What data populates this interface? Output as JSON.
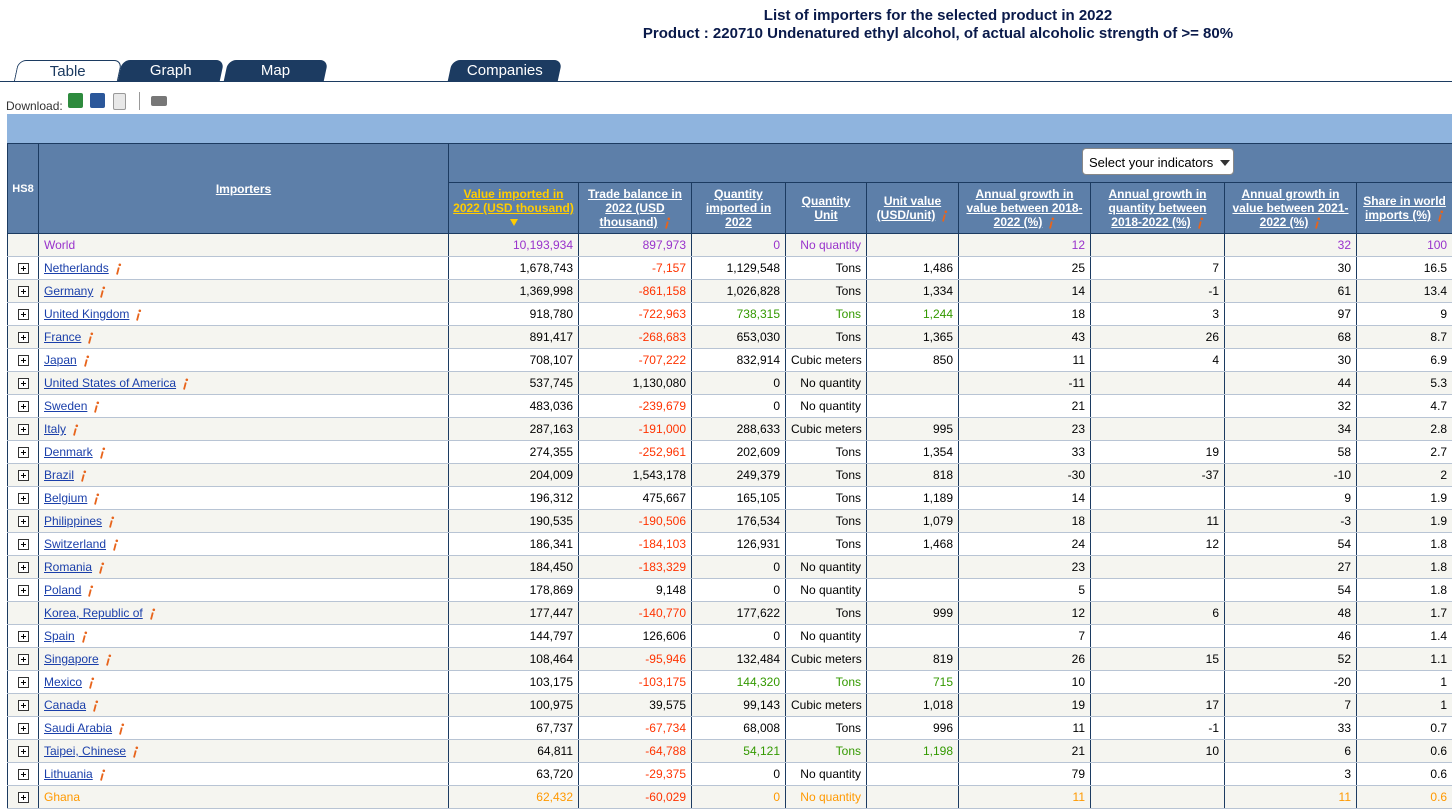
{
  "header": {
    "title": "List of importers for the selected product in 2022",
    "subtitle": "Product : 220710 Undenatured ethyl alcohol, of actual alcoholic strength of >= 80%"
  },
  "tabs": [
    "Table",
    "Graph",
    "Map",
    "Companies"
  ],
  "download_label": "Download:",
  "indicator_select": "Select your indicators",
  "table": {
    "negative_color": "#ff3300",
    "columns": [
      {
        "label": "HS8"
      },
      {
        "label": "Importers"
      },
      {
        "label": "Value imported in 2022 (USD thousand)",
        "sorted": true
      },
      {
        "label": "Trade balance in 2022 (USD thousand)",
        "info": true
      },
      {
        "label": "Quantity imported in 2022"
      },
      {
        "label": "Quantity Unit"
      },
      {
        "label": "Unit value (USD/unit)",
        "info": true
      },
      {
        "label": "Annual growth in value between 2018-2022 (%)",
        "info": true
      },
      {
        "label": "Annual growth in quantity between 2018-2022 (%)",
        "info": true
      },
      {
        "label": "Annual growth in value between 2021-2022 (%)",
        "info": true
      },
      {
        "label": "Share in world imports (%)",
        "info": true
      }
    ],
    "rows": [
      {
        "name": "World",
        "expand": false,
        "color": "#9933cc",
        "values": [
          "10,193,934",
          "897,973",
          "0",
          "No quantity",
          null,
          "12",
          null,
          "32",
          "100"
        ]
      },
      {
        "name": "Netherlands",
        "expand": true,
        "values": [
          "1,678,743",
          "-7,157",
          "1,129,548",
          "Tons",
          "1,486",
          "25",
          "7",
          "30",
          "16.5"
        ]
      },
      {
        "name": "Germany",
        "expand": true,
        "values": [
          "1,369,998",
          "-861,158",
          "1,026,828",
          "Tons",
          "1,334",
          "14",
          "-1",
          "61",
          "13.4"
        ]
      },
      {
        "name": "United Kingdom",
        "expand": true,
        "quantity_color": "#339900",
        "values": [
          "918,780",
          "-722,963",
          "738,315",
          "Tons",
          "1,244",
          "18",
          "3",
          "97",
          "9"
        ]
      },
      {
        "name": "France",
        "expand": true,
        "values": [
          "891,417",
          "-268,683",
          "653,030",
          "Tons",
          "1,365",
          "43",
          "26",
          "68",
          "8.7"
        ]
      },
      {
        "name": "Japan",
        "expand": true,
        "values": [
          "708,107",
          "-707,222",
          "832,914",
          "Cubic meters",
          "850",
          "11",
          "4",
          "30",
          "6.9"
        ]
      },
      {
        "name": "United States of America",
        "expand": true,
        "values": [
          "537,745",
          "1,130,080",
          "0",
          "No quantity",
          null,
          "-11",
          null,
          "44",
          "5.3"
        ]
      },
      {
        "name": "Sweden",
        "expand": true,
        "values": [
          "483,036",
          "-239,679",
          "0",
          "No quantity",
          null,
          "21",
          null,
          "32",
          "4.7"
        ]
      },
      {
        "name": "Italy",
        "expand": true,
        "values": [
          "287,163",
          "-191,000",
          "288,633",
          "Cubic meters",
          "995",
          "23",
          null,
          "34",
          "2.8"
        ]
      },
      {
        "name": "Denmark",
        "expand": true,
        "values": [
          "274,355",
          "-252,961",
          "202,609",
          "Tons",
          "1,354",
          "33",
          "19",
          "58",
          "2.7"
        ]
      },
      {
        "name": "Brazil",
        "expand": true,
        "values": [
          "204,009",
          "1,543,178",
          "249,379",
          "Tons",
          "818",
          "-30",
          "-37",
          "-10",
          "2"
        ]
      },
      {
        "name": "Belgium",
        "expand": true,
        "values": [
          "196,312",
          "475,667",
          "165,105",
          "Tons",
          "1,189",
          "14",
          null,
          "9",
          "1.9"
        ]
      },
      {
        "name": "Philippines",
        "expand": true,
        "values": [
          "190,535",
          "-190,506",
          "176,534",
          "Tons",
          "1,079",
          "18",
          "11",
          "-3",
          "1.9"
        ]
      },
      {
        "name": "Switzerland",
        "expand": true,
        "values": [
          "186,341",
          "-184,103",
          "126,931",
          "Tons",
          "1,468",
          "24",
          "12",
          "54",
          "1.8"
        ]
      },
      {
        "name": "Romania",
        "expand": true,
        "values": [
          "184,450",
          "-183,329",
          "0",
          "No quantity",
          null,
          "23",
          null,
          "27",
          "1.8"
        ]
      },
      {
        "name": "Poland",
        "expand": true,
        "values": [
          "178,869",
          "9,148",
          "0",
          "No quantity",
          null,
          "5",
          null,
          "54",
          "1.8"
        ]
      },
      {
        "name": "Korea, Republic of",
        "expand": false,
        "values": [
          "177,447",
          "-140,770",
          "177,622",
          "Tons",
          "999",
          "12",
          "6",
          "48",
          "1.7"
        ]
      },
      {
        "name": "Spain",
        "expand": true,
        "values": [
          "144,797",
          "126,606",
          "0",
          "No quantity",
          null,
          "7",
          null,
          "46",
          "1.4"
        ]
      },
      {
        "name": "Singapore",
        "expand": true,
        "values": [
          "108,464",
          "-95,946",
          "132,484",
          "Cubic meters",
          "819",
          "26",
          "15",
          "52",
          "1.1"
        ]
      },
      {
        "name": "Mexico",
        "expand": true,
        "quantity_color": "#339900",
        "values": [
          "103,175",
          "-103,175",
          "144,320",
          "Tons",
          "715",
          "10",
          null,
          "-20",
          "1"
        ]
      },
      {
        "name": "Canada",
        "expand": true,
        "values": [
          "100,975",
          "39,575",
          "99,143",
          "Cubic meters",
          "1,018",
          "19",
          "17",
          "7",
          "1"
        ]
      },
      {
        "name": "Saudi Arabia",
        "expand": true,
        "values": [
          "67,737",
          "-67,734",
          "68,008",
          "Tons",
          "996",
          "11",
          "-1",
          "33",
          "0.7"
        ]
      },
      {
        "name": "Taipei, Chinese",
        "expand": true,
        "quantity_color": "#339900",
        "values": [
          "64,811",
          "-64,788",
          "54,121",
          "Tons",
          "1,198",
          "21",
          "10",
          "6",
          "0.6"
        ]
      },
      {
        "name": "Lithuania",
        "expand": true,
        "values": [
          "63,720",
          "-29,375",
          "0",
          "No quantity",
          null,
          "79",
          null,
          "3",
          "0.6"
        ]
      },
      {
        "name": "Ghana",
        "expand": true,
        "color": "#ff9900",
        "values": [
          "62,432",
          "-60,029",
          "0",
          "No quantity",
          null,
          "11",
          null,
          "11",
          "0.6"
        ]
      }
    ]
  }
}
